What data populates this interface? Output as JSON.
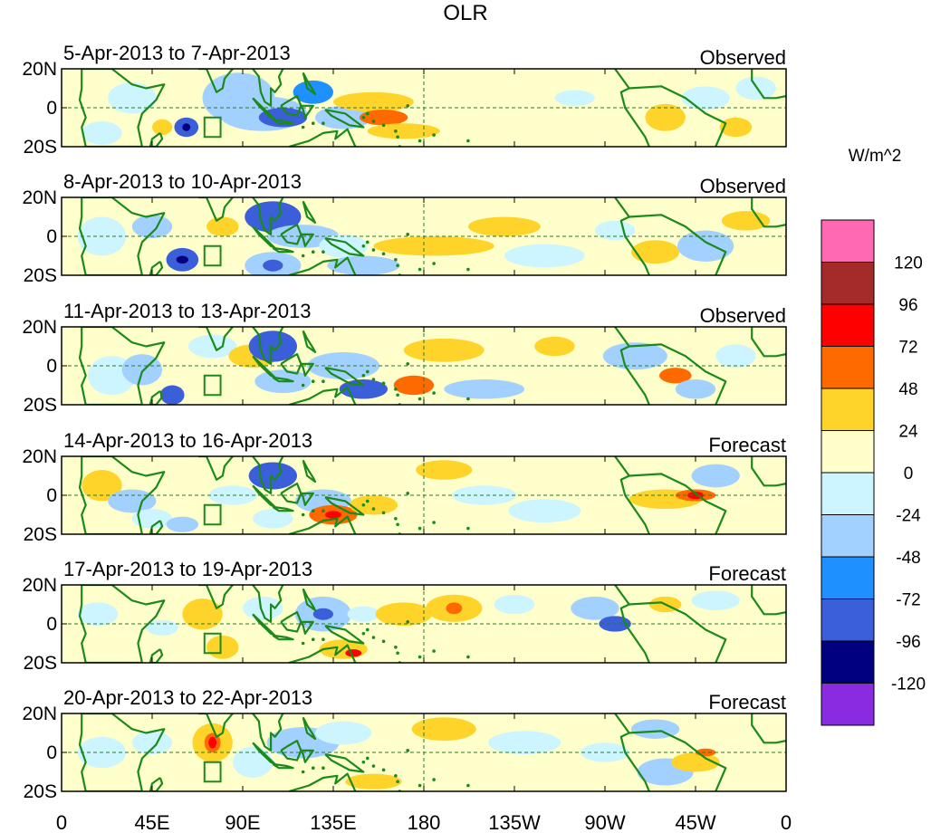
{
  "chart_data": {
    "type": "heatmap",
    "title": "OLR",
    "units": "W/m^2",
    "lat_range": [
      -20,
      20
    ],
    "lon_range": [
      0,
      360
    ],
    "lat_ticks": [
      "20N",
      "0",
      "20S"
    ],
    "lon_ticks": [
      "0",
      "45E",
      "90E",
      "135E",
      "180",
      "135W",
      "90W",
      "45W",
      "0"
    ],
    "panels": [
      {
        "period": "5-Apr-2013 to 7-Apr-2013",
        "status": "Observed"
      },
      {
        "period": "8-Apr-2013 to 10-Apr-2013",
        "status": "Observed"
      },
      {
        "period": "11-Apr-2013 to 13-Apr-2013",
        "status": "Observed"
      },
      {
        "period": "14-Apr-2013 to 16-Apr-2013",
        "status": "Forecast"
      },
      {
        "period": "17-Apr-2013 to 19-Apr-2013",
        "status": "Forecast"
      },
      {
        "period": "20-Apr-2013 to 22-Apr-2013",
        "status": "Forecast"
      }
    ],
    "colorbar": {
      "levels": [
        "120",
        "96",
        "72",
        "48",
        "24",
        "0",
        "-24",
        "-48",
        "-72",
        "-96",
        "-120"
      ],
      "colors": [
        "#ff69b4",
        "#a52a2a",
        "#ff0000",
        "#ff6a00",
        "#ffd42a",
        "#ffffcc",
        "#ccf5ff",
        "#a3d1ff",
        "#1e90ff",
        "#3a5fd9",
        "#000080",
        "#8a2be2"
      ]
    }
  }
}
